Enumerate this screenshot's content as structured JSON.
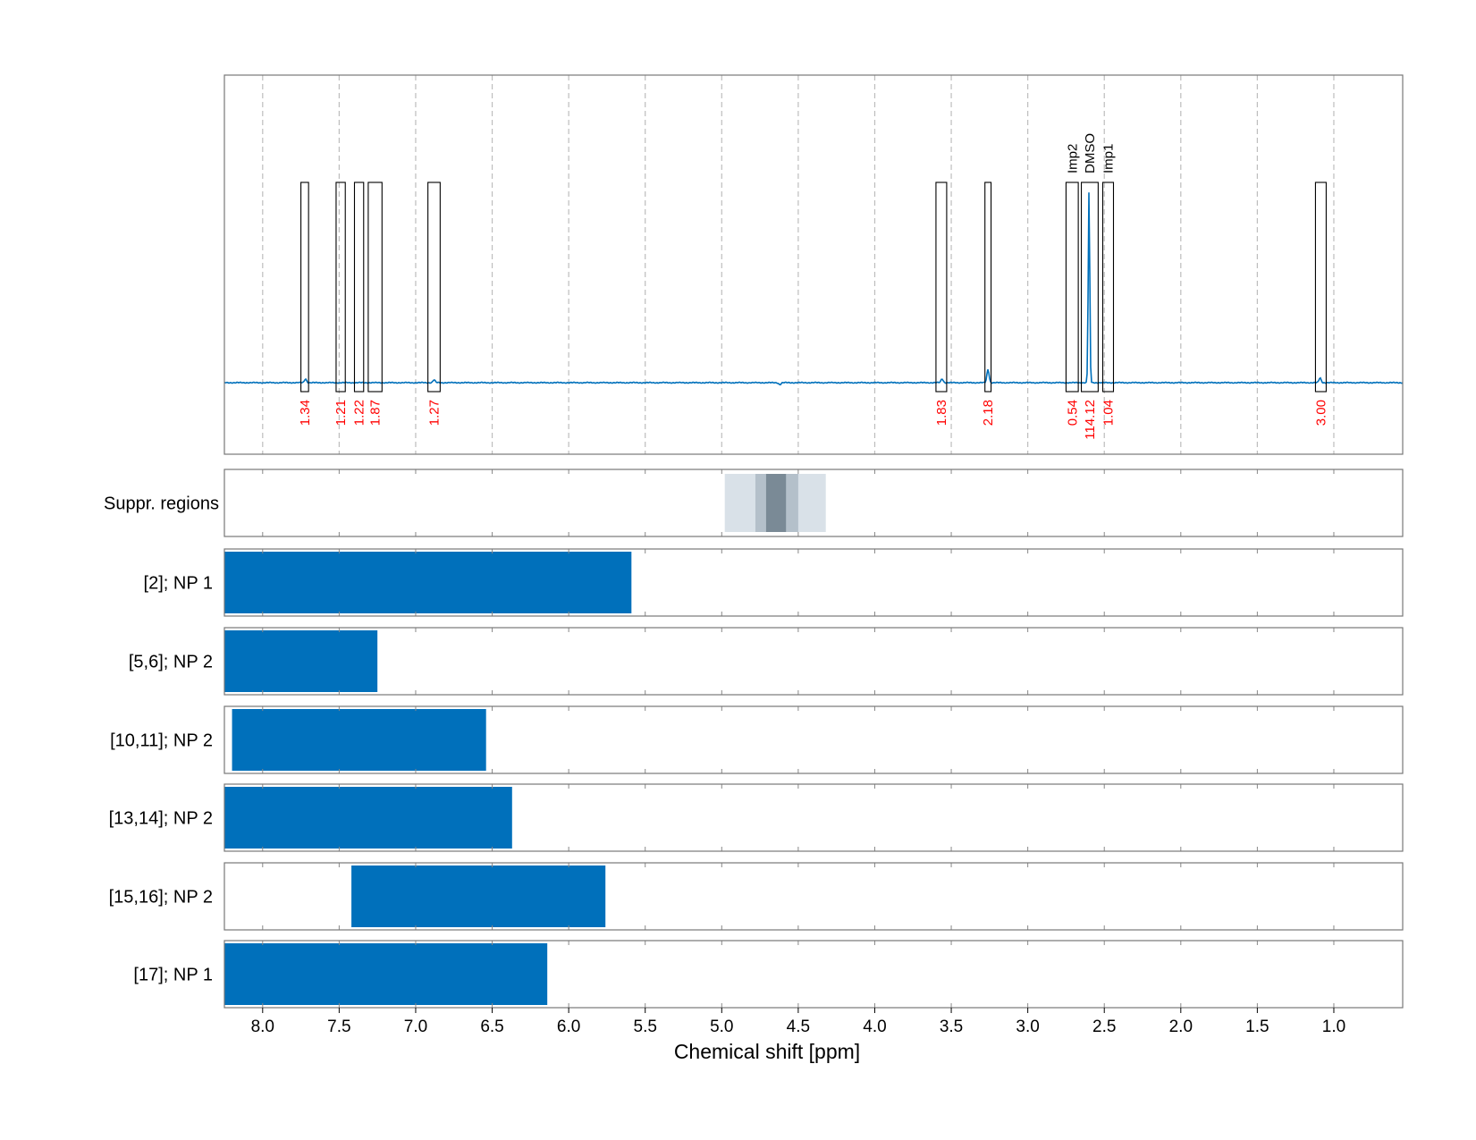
{
  "chart_data": {
    "type": "nmr-spectrum",
    "xlabel": "Chemical shift [ppm]",
    "x_ticks": [
      "8.0",
      "7.5",
      "7.0",
      "6.5",
      "6.0",
      "5.5",
      "5.0",
      "4.5",
      "4.0",
      "3.5",
      "3.0",
      "2.5",
      "2.0",
      "1.5",
      "1.0"
    ],
    "xlim": [
      8.25,
      0.55
    ],
    "x_reversed": true,
    "grid": "vertical dashed",
    "colors": {
      "spectrum": "#0070bb",
      "integral_label": "#ff0000",
      "bar": "#0070bb",
      "suppr_light": "#d9e1e8",
      "suppr_mid": "#b4c0ca",
      "suppr_dark": "#7a8a96"
    },
    "spectrum": {
      "baseline": 0,
      "peaks": [
        {
          "x": 7.72,
          "y": 2
        },
        {
          "x": 6.88,
          "y": 1.5
        },
        {
          "x": 3.56,
          "y": 2
        },
        {
          "x": 3.26,
          "y": 7
        },
        {
          "x": 2.6,
          "y": 100
        },
        {
          "x": 1.09,
          "y": 2.5
        },
        {
          "x": 4.62,
          "y": -1
        }
      ]
    },
    "integration_regions": [
      {
        "from": 7.75,
        "to": 7.7,
        "integral": "1.34"
      },
      {
        "from": 7.52,
        "to": 7.46,
        "integral": "1.21"
      },
      {
        "from": 7.4,
        "to": 7.34,
        "integral": "1.22"
      },
      {
        "from": 7.31,
        "to": 7.22,
        "integral": "1.87"
      },
      {
        "from": 6.92,
        "to": 6.84,
        "integral": "1.27"
      },
      {
        "from": 3.6,
        "to": 3.53,
        "integral": "1.83"
      },
      {
        "from": 3.28,
        "to": 3.24,
        "integral": "2.18"
      },
      {
        "from": 2.75,
        "to": 2.67,
        "integral": "0.54",
        "annotation": "Imp2"
      },
      {
        "from": 2.65,
        "to": 2.54,
        "integral": "114.12",
        "annotation": "DMSO"
      },
      {
        "from": 2.51,
        "to": 2.44,
        "integral": "1.04",
        "annotation": "Imp1"
      },
      {
        "from": 1.12,
        "to": 1.05,
        "integral": "3.00"
      }
    ],
    "suppression": {
      "label": "Suppr. regions",
      "bands": [
        {
          "from": 4.98,
          "to": 4.32,
          "shade": "light"
        },
        {
          "from": 4.78,
          "to": 4.5,
          "shade": "mid"
        },
        {
          "from": 4.71,
          "to": 4.58,
          "shade": "dark"
        }
      ]
    },
    "bars": [
      {
        "label": "[2]; NP 1",
        "from": 8.25,
        "to": 5.59
      },
      {
        "label": "[5,6]; NP 2",
        "from": 8.25,
        "to": 7.25
      },
      {
        "label": "[10,11]; NP 2",
        "from": 8.2,
        "to": 6.54
      },
      {
        "label": "[13,14]; NP 2",
        "from": 8.25,
        "to": 6.37
      },
      {
        "label": "[15,16]; NP 2",
        "from": 7.42,
        "to": 5.76
      },
      {
        "label": "[17]; NP 1",
        "from": 8.25,
        "to": 6.14
      }
    ]
  }
}
